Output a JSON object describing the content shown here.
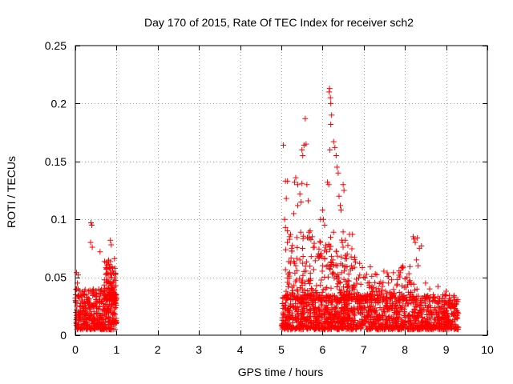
{
  "chart_data": {
    "type": "scatter",
    "title": "Day 170 of 2015, Rate Of TEC Index for receiver sch2",
    "xlabel": "GPS time / hours",
    "ylabel": "ROTI / TECUs",
    "xlim": [
      0,
      10
    ],
    "ylim": [
      0,
      0.25
    ],
    "xticks": [
      0,
      1,
      2,
      3,
      4,
      5,
      6,
      7,
      8,
      9,
      10
    ],
    "yticks": [
      0,
      0.05,
      0.1,
      0.15,
      0.2,
      0.25
    ],
    "xtick_labels": [
      "0",
      "1",
      "2",
      "3",
      "4",
      "5",
      "6",
      "7",
      "8",
      "9",
      "10"
    ],
    "ytick_labels": [
      "0",
      "0.05",
      "0.1",
      "0.15",
      "0.2",
      "0.25"
    ],
    "grid": true,
    "marker": "+",
    "color": "#ff0000",
    "series": [
      {
        "name": "ROTI",
        "clusters": [
          {
            "x_range": [
              0.0,
              1.0
            ],
            "y_range": [
              0.005,
              0.04
            ],
            "density": 420
          },
          {
            "x_range": [
              0.7,
              1.0
            ],
            "y_range": [
              0.03,
              0.065
            ],
            "density": 90
          },
          {
            "x_range": [
              5.0,
              9.3
            ],
            "y_range": [
              0.005,
              0.035
            ],
            "density": 1400
          },
          {
            "x_range": [
              5.1,
              6.8
            ],
            "y_range": [
              0.03,
              0.09
            ],
            "density": 220
          },
          {
            "x_range": [
              6.3,
              8.3
            ],
            "y_range": [
              0.03,
              0.06
            ],
            "density": 160
          }
        ],
        "points": [
          [
            0.38,
            0.097
          ],
          [
            0.4,
            0.095
          ],
          [
            0.37,
            0.08
          ],
          [
            0.41,
            0.076
          ],
          [
            0.85,
            0.082
          ],
          [
            0.87,
            0.078
          ],
          [
            0.6,
            0.072
          ],
          [
            0.95,
            0.066
          ],
          [
            0.03,
            0.054
          ],
          [
            0.07,
            0.052
          ],
          [
            0.05,
            0.045
          ],
          [
            0.0,
            0.032
          ],
          [
            5.05,
            0.164
          ],
          [
            5.1,
            0.133
          ],
          [
            5.15,
            0.133
          ],
          [
            5.12,
            0.118
          ],
          [
            5.08,
            0.1
          ],
          [
            5.1,
            0.093
          ],
          [
            5.15,
            0.09
          ],
          [
            5.2,
            0.085
          ],
          [
            5.32,
            0.132
          ],
          [
            5.35,
            0.136
          ],
          [
            5.4,
            0.13
          ],
          [
            5.45,
            0.122
          ],
          [
            5.5,
            0.16
          ],
          [
            5.52,
            0.155
          ],
          [
            5.55,
            0.164
          ],
          [
            5.6,
            0.165
          ],
          [
            5.58,
            0.187
          ],
          [
            5.5,
            0.131
          ],
          [
            5.48,
            0.115
          ],
          [
            5.62,
            0.13
          ],
          [
            5.65,
            0.116
          ],
          [
            5.4,
            0.112
          ],
          [
            5.3,
            0.105
          ],
          [
            5.7,
            0.09
          ],
          [
            5.75,
            0.085
          ],
          [
            5.8,
            0.076
          ],
          [
            5.9,
            0.07
          ],
          [
            5.95,
            0.08
          ],
          [
            6.0,
            0.108
          ],
          [
            6.02,
            0.1
          ],
          [
            6.05,
            0.095
          ],
          [
            6.08,
            0.076
          ],
          [
            6.1,
            0.072
          ],
          [
            6.12,
            0.132
          ],
          [
            6.15,
            0.13
          ],
          [
            6.18,
            0.16
          ],
          [
            6.16,
            0.21
          ],
          [
            6.17,
            0.213
          ],
          [
            6.19,
            0.205
          ],
          [
            6.2,
            0.2
          ],
          [
            6.22,
            0.19
          ],
          [
            6.2,
            0.182
          ],
          [
            6.27,
            0.167
          ],
          [
            6.3,
            0.162
          ],
          [
            6.33,
            0.155
          ],
          [
            6.35,
            0.145
          ],
          [
            6.38,
            0.14
          ],
          [
            6.4,
            0.12
          ],
          [
            6.43,
            0.112
          ],
          [
            6.45,
            0.108
          ],
          [
            6.5,
            0.13
          ],
          [
            6.52,
            0.125
          ],
          [
            6.48,
            0.08
          ],
          [
            6.55,
            0.082
          ],
          [
            6.6,
            0.07
          ],
          [
            6.7,
            0.06
          ],
          [
            6.8,
            0.063
          ],
          [
            6.9,
            0.062
          ],
          [
            7.0,
            0.05
          ],
          [
            7.1,
            0.045
          ],
          [
            5.25,
            0.075
          ],
          [
            5.35,
            0.06
          ],
          [
            5.45,
            0.065
          ],
          [
            5.55,
            0.055
          ],
          [
            6.25,
            0.065
          ],
          [
            6.35,
            0.06
          ],
          [
            5.95,
            0.1
          ],
          [
            6.0,
            0.06
          ],
          [
            8.2,
            0.085
          ],
          [
            8.22,
            0.083
          ],
          [
            8.25,
            0.08
          ],
          [
            8.3,
            0.084
          ],
          [
            8.35,
            0.075
          ],
          [
            8.28,
            0.065
          ],
          [
            8.32,
            0.06
          ],
          [
            8.4,
            0.077
          ],
          [
            8.05,
            0.05
          ],
          [
            8.15,
            0.045
          ],
          [
            7.6,
            0.045
          ],
          [
            7.8,
            0.043
          ],
          [
            8.5,
            0.045
          ],
          [
            8.6,
            0.04
          ],
          [
            8.8,
            0.042
          ],
          [
            9.0,
            0.038
          ],
          [
            9.1,
            0.03
          ],
          [
            9.2,
            0.025
          ],
          [
            7.3,
            0.04
          ],
          [
            7.45,
            0.042
          ]
        ]
      }
    ]
  }
}
